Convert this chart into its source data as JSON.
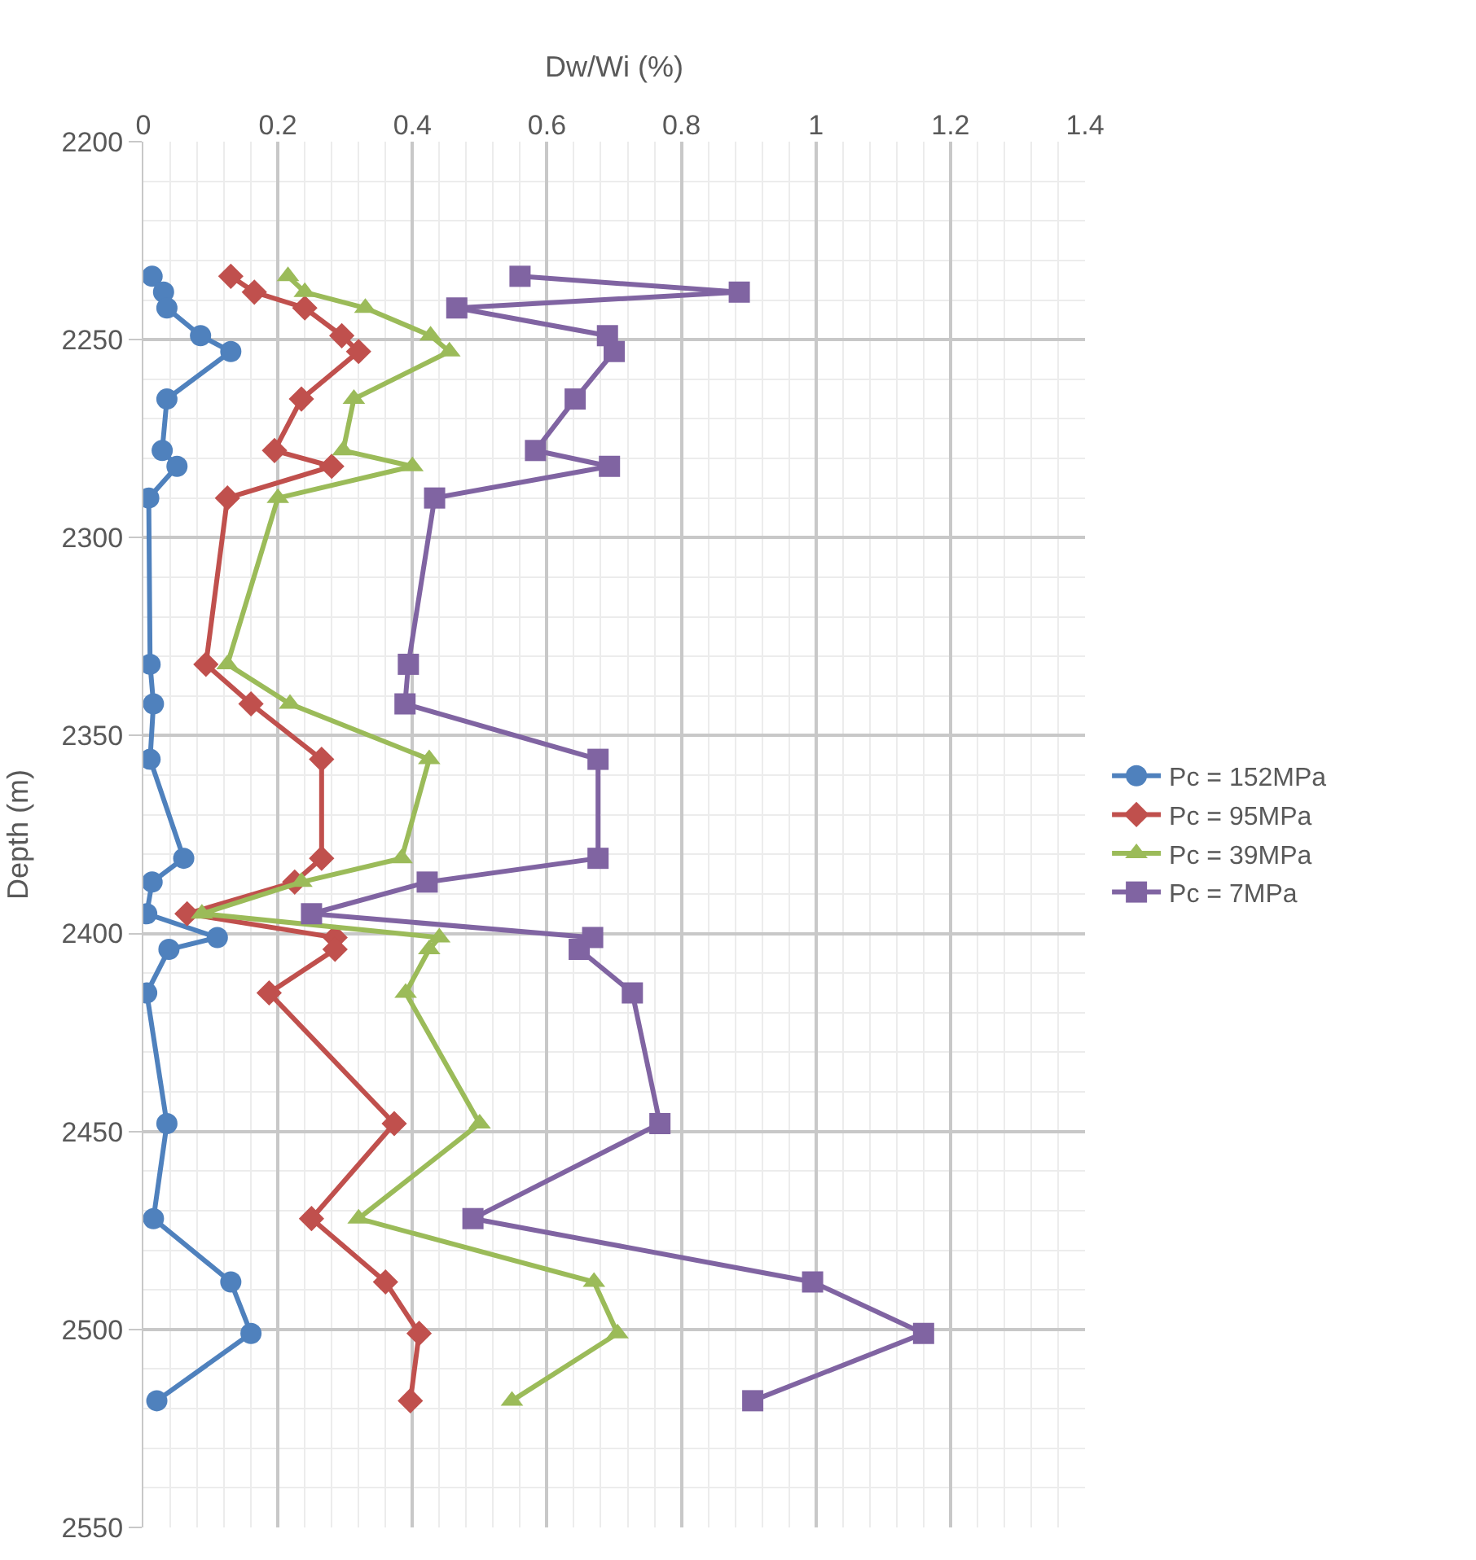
{
  "chart_data": {
    "type": "line",
    "xlabel": "Dw/Wi (%)",
    "ylabel": "Depth (m)",
    "xlim": [
      0,
      1.4
    ],
    "xticks": [
      0,
      0.2,
      0.4,
      0.6,
      0.8,
      1,
      1.2,
      1.4
    ],
    "ylim": [
      2550,
      2200
    ],
    "yticks": [
      2200,
      2250,
      2300,
      2350,
      2400,
      2450,
      2500,
      2550
    ],
    "grid": true,
    "legend": "right",
    "line_style": "solid",
    "series": [
      {
        "name": "Pc = 152MPa",
        "color": "#4f81bd",
        "marker": "circle",
        "x": [
          0.013,
          0.03,
          0.035,
          0.085,
          0.13,
          0.035,
          0.028,
          0.05,
          0.008,
          0.01,
          0.015,
          0.01,
          0.06,
          0.013,
          0.005,
          0.11,
          0.038,
          0.005,
          0.035,
          0.015,
          0.13,
          0.16,
          0.02
        ],
        "values": [
          2234,
          2238,
          2242,
          2249,
          2253,
          2265,
          2278,
          2282,
          2290,
          2332,
          2342,
          2356,
          2381,
          2387,
          2395,
          2401,
          2404,
          2415,
          2448,
          2472,
          2488,
          2501,
          2518
        ]
      },
      {
        "name": "Pc = 95MPa",
        "color": "#c0504d",
        "marker": "diamond",
        "x": [
          0.13,
          0.165,
          0.24,
          0.295,
          0.32,
          0.235,
          0.195,
          0.28,
          0.125,
          0.093,
          0.16,
          0.265,
          0.265,
          0.225,
          0.065,
          0.285,
          0.285,
          0.187,
          0.373,
          0.25,
          0.36,
          0.41,
          0.397
        ],
        "values": [
          2234,
          2238,
          2242,
          2249,
          2253,
          2265,
          2278,
          2282,
          2290,
          2332,
          2342,
          2356,
          2381,
          2387,
          2395,
          2401,
          2404,
          2415,
          2448,
          2472,
          2488,
          2501,
          2518
        ]
      },
      {
        "name": "Pc = 39MPa",
        "color": "#9bbb59",
        "marker": "triangle",
        "x": [
          0.215,
          0.24,
          0.33,
          0.427,
          0.455,
          0.313,
          0.297,
          0.4,
          0.2,
          0.125,
          0.218,
          0.425,
          0.384,
          0.235,
          0.087,
          0.44,
          0.425,
          0.39,
          0.5,
          0.32,
          0.67,
          0.705,
          0.548
        ],
        "values": [
          2234,
          2238,
          2242,
          2249,
          2253,
          2265,
          2278,
          2282,
          2290,
          2332,
          2342,
          2356,
          2381,
          2387,
          2395,
          2401,
          2404,
          2415,
          2448,
          2472,
          2488,
          2501,
          2518
        ]
      },
      {
        "name": "Pc = 7MPa",
        "color": "#8064a2",
        "marker": "square",
        "x": [
          0.56,
          0.886,
          0.466,
          0.69,
          0.7,
          0.642,
          0.583,
          0.693,
          0.433,
          0.394,
          0.389,
          0.676,
          0.676,
          0.422,
          0.25,
          0.668,
          0.648,
          0.727,
          0.768,
          0.49,
          0.995,
          1.16,
          0.906
        ],
        "values": [
          2234,
          2238,
          2242,
          2249,
          2253,
          2265,
          2278,
          2282,
          2290,
          2332,
          2342,
          2356,
          2381,
          2387,
          2395,
          2401,
          2404,
          2415,
          2448,
          2472,
          2488,
          2501,
          2518
        ]
      }
    ]
  }
}
